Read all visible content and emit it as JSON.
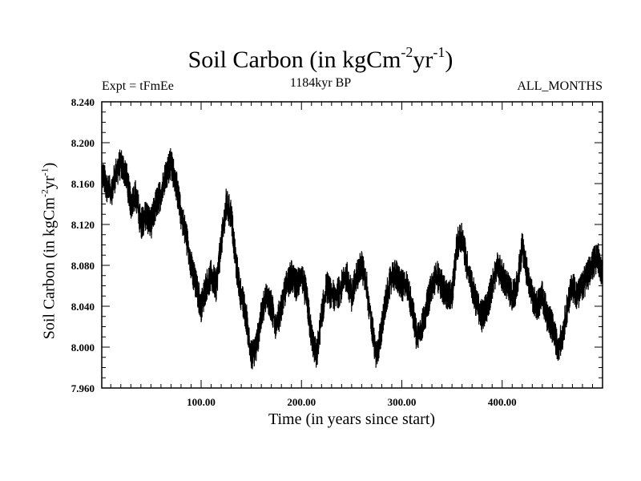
{
  "chart_data": {
    "type": "line",
    "title": "Soil Carbon (in kgCm",
    "title_sup1": "-2",
    "title_mid": "yr",
    "title_sup2": "-1",
    "title_end": ")",
    "subtitle_left": "Expt = tFmEe",
    "subtitle_center": "1184kyr BP",
    "subtitle_right": "ALL_MONTHS",
    "xlabel": "Time (in years since start)",
    "ylabel_base": "Soil Carbon (in kgCm",
    "ylabel_sup1": "-2",
    "ylabel_mid": "yr",
    "ylabel_sup2": "-1",
    "ylabel_end": ")",
    "xlim": [
      1,
      500
    ],
    "ylim": [
      7.96,
      8.24
    ],
    "x_ticks": [
      100,
      200,
      300,
      400
    ],
    "x_tick_labels": [
      "100.00",
      "200.00",
      "300.00",
      "400.00"
    ],
    "y_ticks": [
      7.96,
      8.0,
      8.04,
      8.08,
      8.12,
      8.16,
      8.2,
      8.24
    ],
    "y_tick_labels": [
      "7.960",
      "8.000",
      "8.040",
      "8.080",
      "8.120",
      "8.160",
      "8.200",
      "8.240"
    ],
    "grid": false,
    "series": [
      {
        "name": "Soil Carbon",
        "x": [
          1,
          5,
          10,
          15,
          20,
          25,
          30,
          35,
          40,
          45,
          50,
          55,
          60,
          65,
          70,
          75,
          80,
          85,
          90,
          95,
          100,
          105,
          110,
          115,
          120,
          125,
          130,
          135,
          140,
          145,
          150,
          155,
          160,
          165,
          170,
          175,
          180,
          185,
          190,
          195,
          200,
          205,
          210,
          215,
          220,
          225,
          230,
          235,
          240,
          245,
          250,
          255,
          260,
          265,
          270,
          275,
          280,
          285,
          290,
          295,
          300,
          305,
          310,
          315,
          320,
          325,
          330,
          335,
          340,
          345,
          350,
          355,
          360,
          365,
          370,
          375,
          380,
          385,
          390,
          395,
          400,
          405,
          410,
          415,
          420,
          425,
          430,
          435,
          440,
          445,
          450,
          455,
          460,
          465,
          470,
          475,
          480,
          485,
          490,
          495,
          500
        ],
        "values": [
          8.17,
          8.16,
          8.15,
          8.17,
          8.18,
          8.17,
          8.14,
          8.15,
          8.12,
          8.13,
          8.12,
          8.14,
          8.15,
          8.17,
          8.18,
          8.16,
          8.13,
          8.11,
          8.08,
          8.06,
          8.04,
          8.06,
          8.07,
          8.06,
          8.1,
          8.14,
          8.13,
          8.08,
          8.05,
          8.03,
          7.99,
          8.0,
          8.03,
          8.05,
          8.04,
          8.02,
          8.04,
          8.06,
          8.07,
          8.06,
          8.07,
          8.05,
          8.01,
          7.99,
          8.03,
          8.06,
          8.05,
          8.05,
          8.06,
          8.07,
          8.05,
          8.07,
          8.08,
          8.06,
          8.02,
          7.99,
          8.02,
          8.05,
          8.07,
          8.07,
          8.06,
          8.06,
          8.04,
          8.01,
          8.02,
          8.04,
          8.06,
          8.07,
          8.06,
          8.05,
          8.05,
          8.1,
          8.11,
          8.08,
          8.06,
          8.04,
          8.03,
          8.04,
          8.06,
          8.08,
          8.07,
          8.06,
          8.05,
          8.06,
          8.1,
          8.07,
          8.05,
          8.04,
          8.05,
          8.03,
          8.02,
          8.0,
          8.01,
          8.04,
          8.06,
          8.05,
          8.06,
          8.07,
          8.08,
          8.09,
          8.07
        ]
      }
    ]
  }
}
